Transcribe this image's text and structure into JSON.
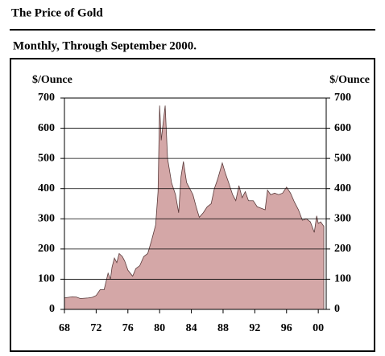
{
  "chart_data": {
    "type": "area",
    "title": "The Price of Gold",
    "subtitle": "Monthly, Through September 2000.",
    "y_label": "$/Ounce",
    "y2_label": "$/Ounce",
    "color": "#d4a7a7",
    "grid": true,
    "xlim": [
      1968,
      2001
    ],
    "ylim": [
      0,
      700
    ],
    "yticks": [
      0,
      100,
      200,
      300,
      400,
      500,
      600,
      700
    ],
    "xticks": [
      {
        "value": 1968,
        "label": "68"
      },
      {
        "value": 1972,
        "label": "72"
      },
      {
        "value": 1976,
        "label": "76"
      },
      {
        "value": 1980,
        "label": "80"
      },
      {
        "value": 1984,
        "label": "84"
      },
      {
        "value": 1988,
        "label": "88"
      },
      {
        "value": 1992,
        "label": "92"
      },
      {
        "value": 1996,
        "label": "96"
      },
      {
        "value": 2000,
        "label": "00"
      }
    ],
    "x": [
      1968.0,
      1968.5,
      1969.0,
      1969.5,
      1970.0,
      1971.0,
      1971.5,
      1972.0,
      1972.5,
      1973.0,
      1973.5,
      1973.8,
      1974.0,
      1974.3,
      1974.6,
      1974.9,
      1975.3,
      1975.6,
      1976.0,
      1976.6,
      1977.0,
      1977.5,
      1978.0,
      1978.5,
      1979.0,
      1979.5,
      1979.8,
      1980.0,
      1980.2,
      1980.5,
      1980.7,
      1981.0,
      1981.5,
      1982.0,
      1982.4,
      1982.7,
      1983.0,
      1983.4,
      1983.8,
      1984.2,
      1984.6,
      1985.0,
      1985.5,
      1986.0,
      1986.5,
      1986.9,
      1987.3,
      1987.9,
      1988.3,
      1988.7,
      1989.2,
      1989.6,
      1990.0,
      1990.4,
      1990.8,
      1991.2,
      1991.8,
      1992.3,
      1992.8,
      1993.3,
      1993.6,
      1994.0,
      1994.5,
      1995.0,
      1995.5,
      1996.0,
      1996.5,
      1997.0,
      1997.5,
      1998.0,
      1998.5,
      1999.0,
      1999.5,
      1999.8,
      2000.0,
      2000.3,
      2000.7
    ],
    "values": [
      38,
      40,
      42,
      41,
      36,
      38,
      40,
      46,
      65,
      65,
      120,
      100,
      140,
      170,
      155,
      185,
      175,
      160,
      130,
      110,
      135,
      145,
      175,
      185,
      230,
      280,
      390,
      675,
      560,
      630,
      675,
      500,
      420,
      380,
      320,
      440,
      490,
      420,
      400,
      380,
      340,
      305,
      320,
      340,
      350,
      400,
      430,
      485,
      450,
      420,
      380,
      360,
      410,
      370,
      390,
      360,
      360,
      340,
      335,
      330,
      395,
      380,
      385,
      380,
      385,
      405,
      385,
      355,
      330,
      295,
      300,
      290,
      255,
      310,
      285,
      290,
      275
    ]
  }
}
